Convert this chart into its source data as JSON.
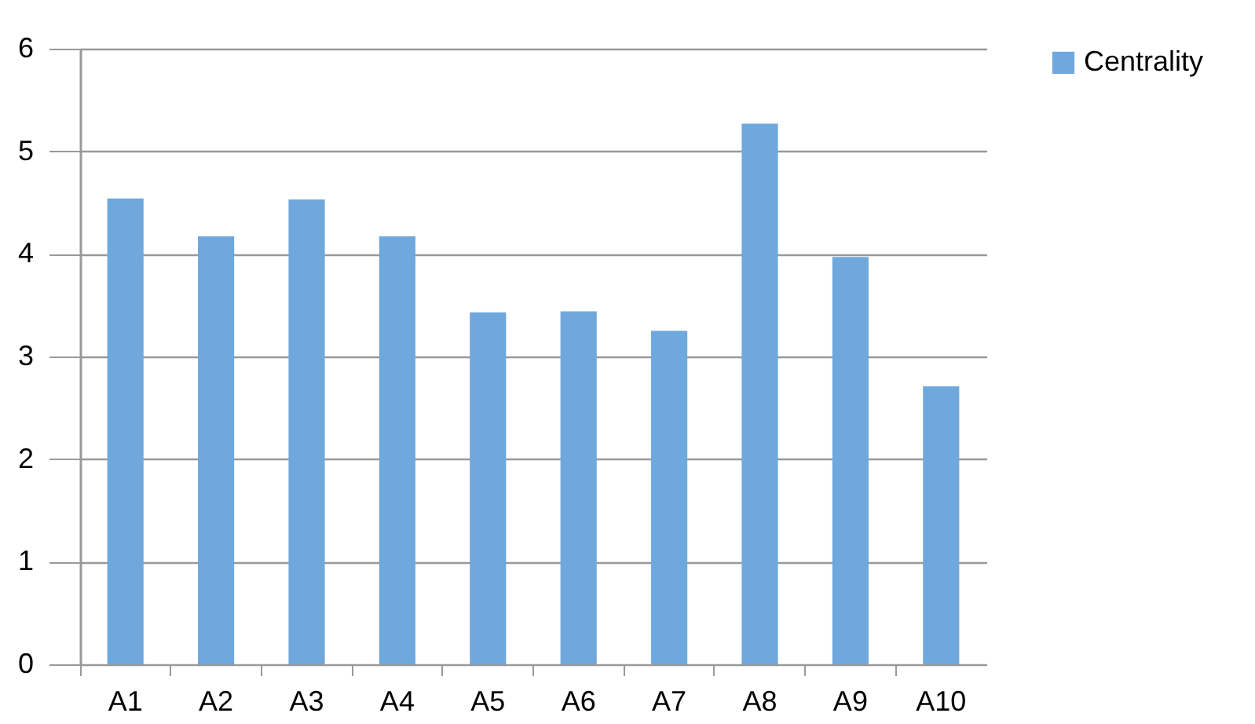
{
  "chart_data": {
    "type": "bar",
    "categories": [
      "A1",
      "A2",
      "A3",
      "A4",
      "A5",
      "A6",
      "A7",
      "A8",
      "A9",
      "A10"
    ],
    "series": [
      {
        "name": "Centrality",
        "color": "#6fa8dc",
        "values": [
          4.54,
          4.17,
          4.53,
          4.17,
          3.43,
          3.44,
          3.25,
          5.27,
          3.97,
          2.71
        ]
      }
    ],
    "ylim": [
      0,
      6
    ],
    "yticks": [
      0,
      1,
      2,
      3,
      4,
      5,
      6
    ],
    "grid": "y",
    "legend": "right"
  }
}
